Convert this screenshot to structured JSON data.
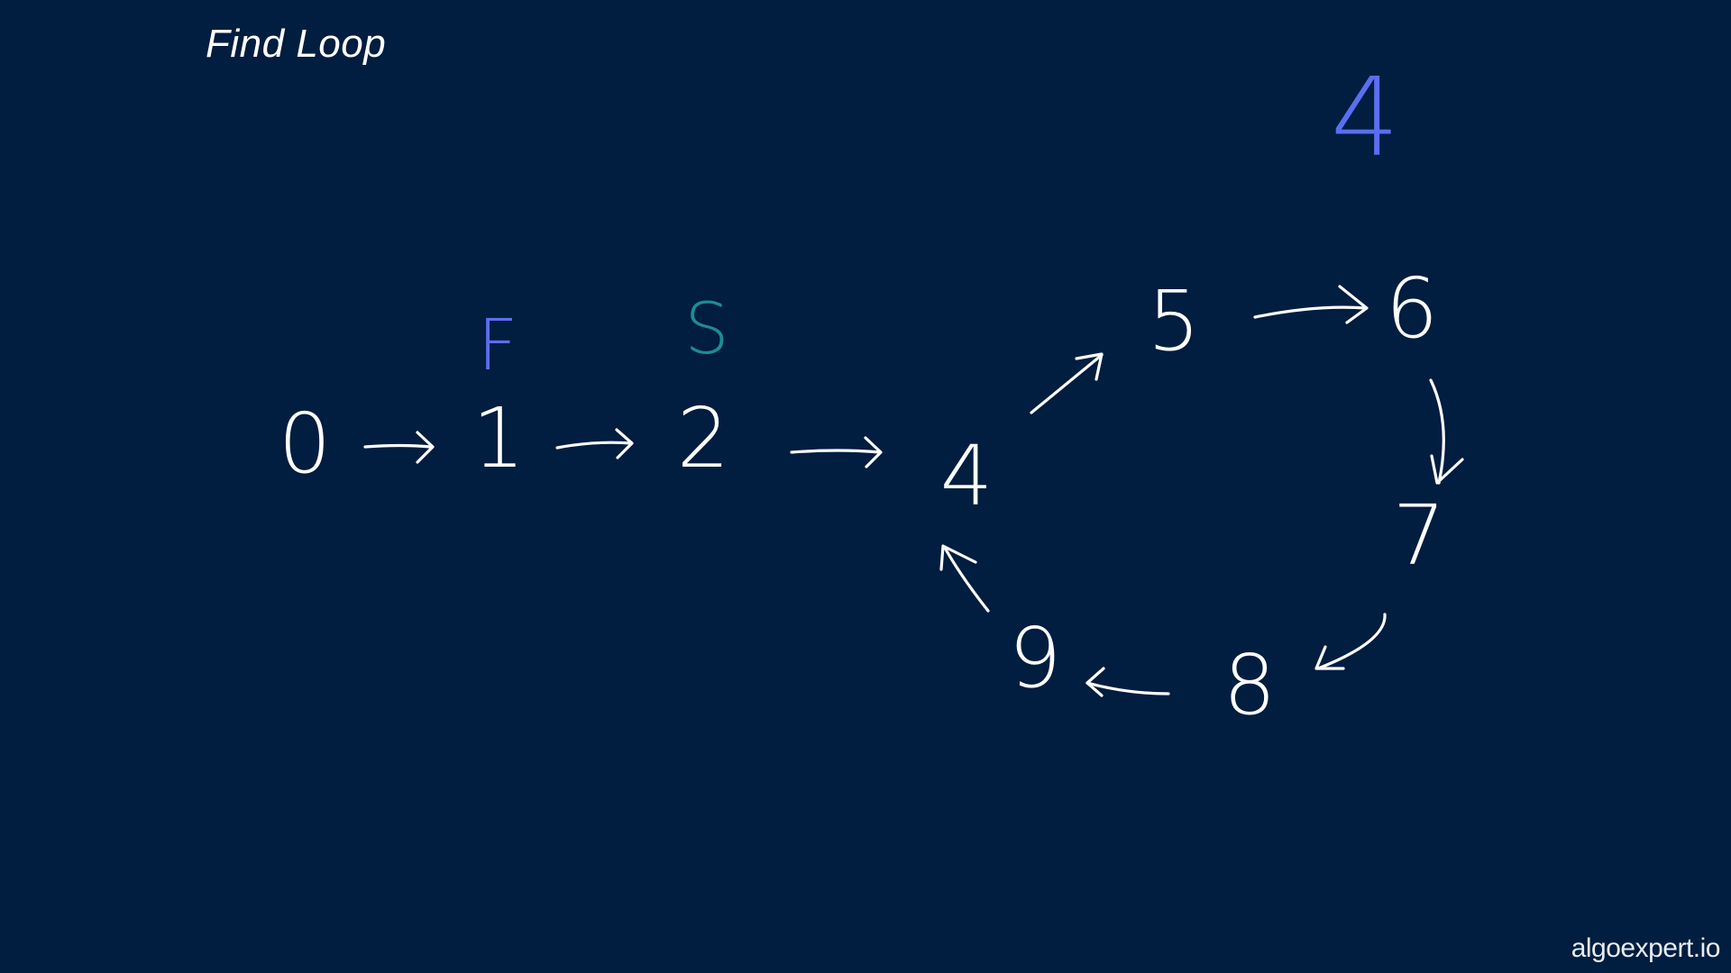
{
  "header": {
    "title": "Find Loop"
  },
  "footer": {
    "brand": "algoexpert.io"
  },
  "diagram": {
    "nodes": [
      "0",
      "1",
      "2",
      "4",
      "5",
      "6",
      "7",
      "8",
      "9"
    ],
    "pointers": {
      "fast": {
        "label": "F",
        "color": "#5b6ef0",
        "at_node": "1"
      },
      "slow": {
        "label": "S",
        "color": "#1e8c94",
        "at_node": "2"
      }
    },
    "annotation": {
      "text": "4",
      "color": "#5b6ef0"
    },
    "edges": [
      [
        "0",
        "1"
      ],
      [
        "1",
        "2"
      ],
      [
        "2",
        "4"
      ],
      [
        "4",
        "5"
      ],
      [
        "5",
        "6"
      ],
      [
        "6",
        "7"
      ],
      [
        "7",
        "8"
      ],
      [
        "8",
        "9"
      ],
      [
        "9",
        "4"
      ]
    ]
  }
}
